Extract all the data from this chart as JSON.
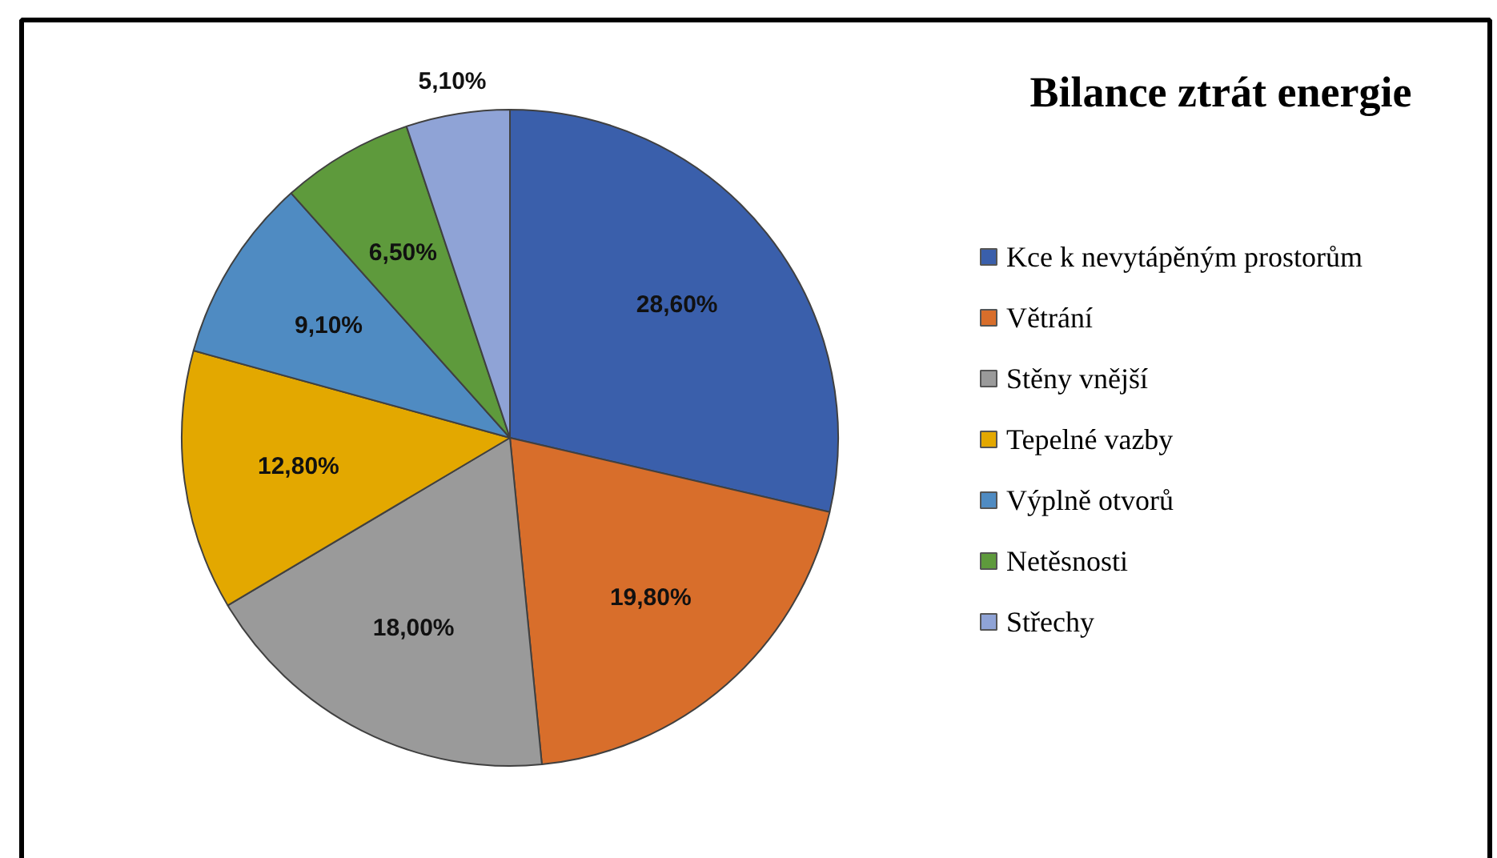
{
  "chart_data": {
    "type": "pie",
    "title": "Bilance ztrát energie",
    "categories": [
      "Kce k nevytápěným prostorům",
      "Větrání",
      "Stěny vnější",
      "Tepelné vazby",
      "Výplně otvorů",
      "Netěsnosti",
      "Střechy"
    ],
    "values": [
      28.6,
      19.8,
      18.0,
      12.8,
      9.1,
      6.5,
      5.1
    ],
    "colors": [
      "#3a5fab",
      "#d86e2b",
      "#9a9a9a",
      "#e3a800",
      "#4f8bc2",
      "#5e9a3c",
      "#8fa3d6"
    ],
    "value_labels": [
      "28,60%",
      "19,80%",
      "18,00%",
      "12,80%",
      "9,10%",
      "6,50%",
      "5,10%"
    ],
    "legend": "right"
  }
}
